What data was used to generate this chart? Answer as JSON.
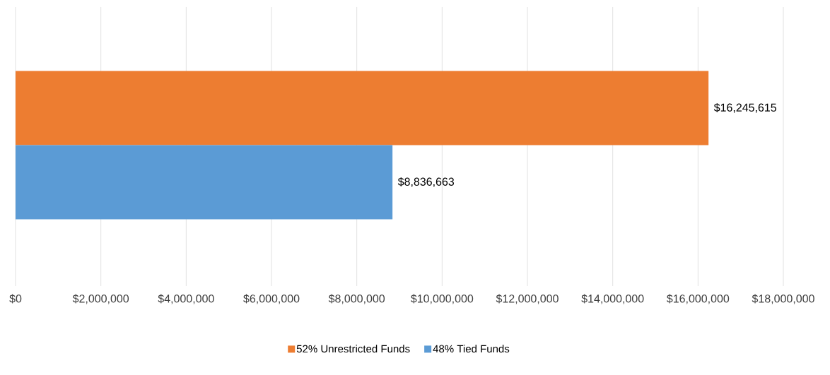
{
  "chart_data": {
    "type": "bar",
    "orientation": "horizontal",
    "categories": [
      null
    ],
    "series": [
      {
        "name": "52% Unrestricted Funds",
        "color": "#ed7d31",
        "values": [
          16245615
        ],
        "value_labels": [
          "$16,245,615"
        ]
      },
      {
        "name": "48% Tied Funds",
        "color": "#5b9bd5",
        "values": [
          8836663
        ],
        "value_labels": [
          "$8,836,663"
        ]
      }
    ],
    "xlim": [
      0,
      18000000
    ],
    "xticks": [
      {
        "value": 0,
        "label": "$0"
      },
      {
        "value": 2000000,
        "label": "$2,000,000"
      },
      {
        "value": 4000000,
        "label": "$4,000,000"
      },
      {
        "value": 6000000,
        "label": "$6,000,000"
      },
      {
        "value": 8000000,
        "label": "$8,000,000"
      },
      {
        "value": 10000000,
        "label": "$10,000,000"
      },
      {
        "value": 12000000,
        "label": "$12,000,000"
      },
      {
        "value": 14000000,
        "label": "$14,000,000"
      },
      {
        "value": 16000000,
        "label": "$16,000,000"
      },
      {
        "value": 18000000,
        "label": "$18,000,000"
      }
    ],
    "grid": "x",
    "legend": "bottom"
  }
}
